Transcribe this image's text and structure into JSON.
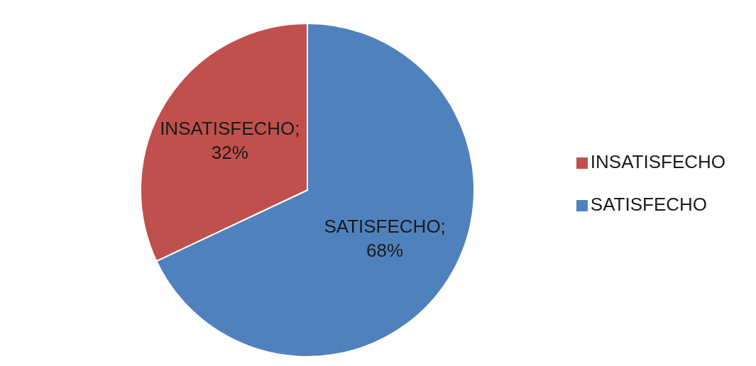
{
  "chart_data": {
    "type": "pie",
    "categories": [
      "SATISFECHO",
      "INSATISFECHO"
    ],
    "values": [
      68,
      32
    ],
    "colors": [
      "#4f81bd",
      "#c0504d"
    ],
    "value_labels": [
      "SATISFECHO; 68%",
      "INSATISFECHO; 32%"
    ],
    "legend": "right"
  }
}
